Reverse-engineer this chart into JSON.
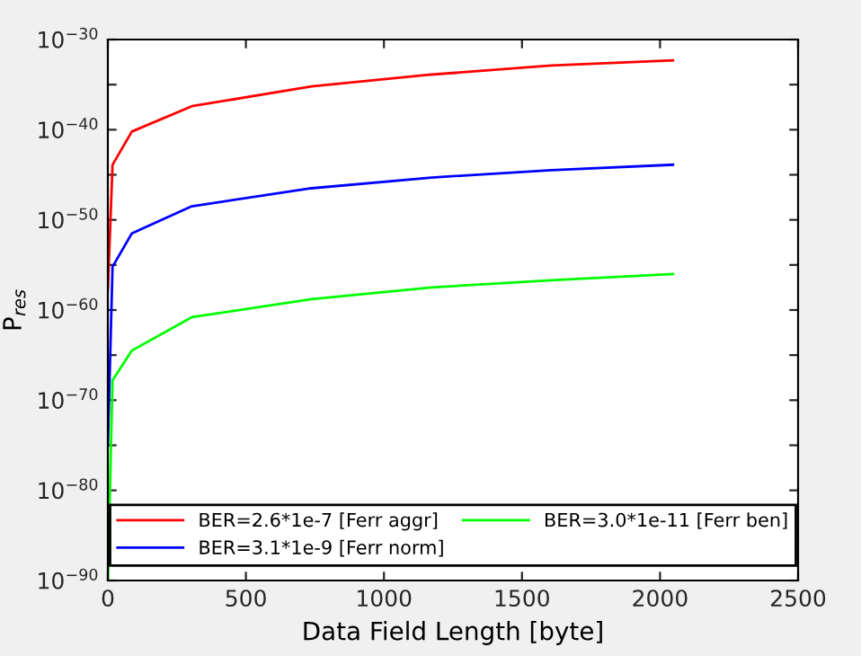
{
  "chart_data": {
    "type": "line",
    "xlabel": "Data Field Length [byte]",
    "ylabel": "P$_{res}$",
    "log": "y",
    "xlim": [
      0,
      2500
    ],
    "xticks": [
      0,
      500,
      1000,
      1500,
      2000,
      2500
    ],
    "ylim": [
      1e-90,
      1e-30
    ],
    "yticks": [
      {
        "value": 1e-90,
        "label": "10$^{−90}$"
      },
      {
        "value": 1e-85,
        "label": null
      },
      {
        "value": 1e-80,
        "label": "10$^{−80}$"
      },
      {
        "value": 1e-75,
        "label": null
      },
      {
        "value": 1e-70,
        "label": "10$^{−70}$"
      },
      {
        "value": 1e-65,
        "label": null
      },
      {
        "value": 1e-60,
        "label": "10$^{−60}$"
      },
      {
        "value": 1e-55,
        "label": null
      },
      {
        "value": 1e-50,
        "label": "10$^{−50}$"
      },
      {
        "value": 1e-45,
        "label": null
      },
      {
        "value": 1e-40,
        "label": "10$^{−40}$"
      },
      {
        "value": 1e-35,
        "label": null
      },
      {
        "value": 1e-30,
        "label": "10$^{−30}$"
      }
    ],
    "grid": false,
    "legend": "bottom",
    "marker": "none",
    "line_style": "solid",
    "x": [
      0,
      17,
      87,
      304,
      738,
      1172,
      1606,
      2047
    ],
    "series": [
      {
        "name": "BER=2.6*1e-7 [Ferr aggr]",
        "color": "#ff0000",
        "values": [
          1.6e-58,
          1.3e-44,
          6.3e-41,
          4e-38,
          6.3e-36,
          1.3e-34,
          1.3e-33,
          5e-33
        ]
      },
      {
        "name": "BER=3.1*1e-9 [Ferr norm]",
        "color": "#0000ff",
        "values": [
          1e-75,
          6.3e-56,
          3.2e-52,
          3.2e-49,
          3.2e-47,
          5e-46,
          3.2e-45,
          1.3e-44
        ]
      },
      {
        "name": "BER=3.0*1e-11 [Ferr ben]",
        "color": "#00ff00",
        "values": [
          1e-90,
          1.6e-68,
          3.2e-65,
          1.6e-61,
          1.6e-59,
          3.2e-58,
          2e-57,
          1e-56
        ]
      }
    ]
  }
}
